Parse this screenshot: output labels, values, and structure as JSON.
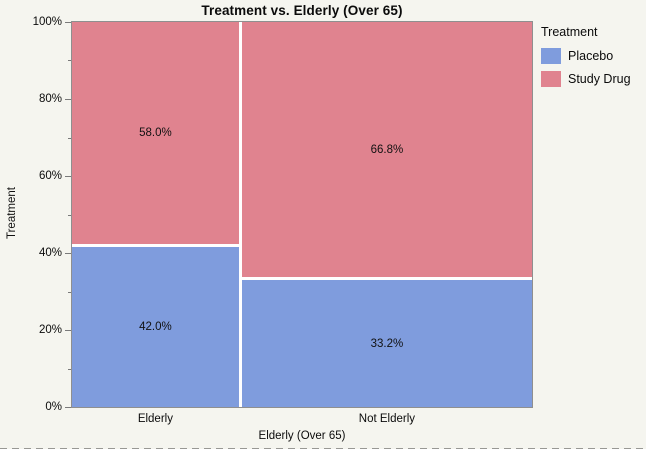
{
  "figure": {
    "background_color": "#F5F5EF",
    "plot_border_color": "#8f8f8f",
    "segment_gap_color": "#ffffff"
  },
  "chart_data": {
    "type": "bar",
    "subtype": "mosaic-100pct-stacked",
    "title": "Treatment vs. Elderly (Over 65)",
    "xlabel": "Elderly (Over 65)",
    "ylabel": "Treatment",
    "categories": [
      "Elderly",
      "Not Elderly"
    ],
    "column_width_fractions": [
      0.365,
      0.635
    ],
    "series": [
      {
        "name": "Placebo",
        "color": "#7F9CDD",
        "values": [
          42.0,
          33.2
        ],
        "labels": [
          "42.0%",
          "33.2%"
        ]
      },
      {
        "name": "Study Drug",
        "color": "#E0838F",
        "values": [
          58.0,
          66.8
        ],
        "labels": [
          "58.0%",
          "66.8%"
        ]
      }
    ],
    "stack_order_bottom_to_top": [
      "Placebo",
      "Study Drug"
    ],
    "ylim": [
      0,
      100
    ],
    "y_major_ticks": [
      {
        "label": "0%",
        "value": 0
      },
      {
        "label": "20%",
        "value": 20
      },
      {
        "label": "40%",
        "value": 40
      },
      {
        "label": "60%",
        "value": 60
      },
      {
        "label": "80%",
        "value": 80
      },
      {
        "label": "100%",
        "value": 100
      }
    ],
    "y_minor_tick_values": [
      10,
      30,
      50,
      70,
      90
    ],
    "grid": false,
    "legend_title": "Treatment",
    "legend_position": "right",
    "legend_entries": [
      "Placebo",
      "Study Drug"
    ]
  }
}
